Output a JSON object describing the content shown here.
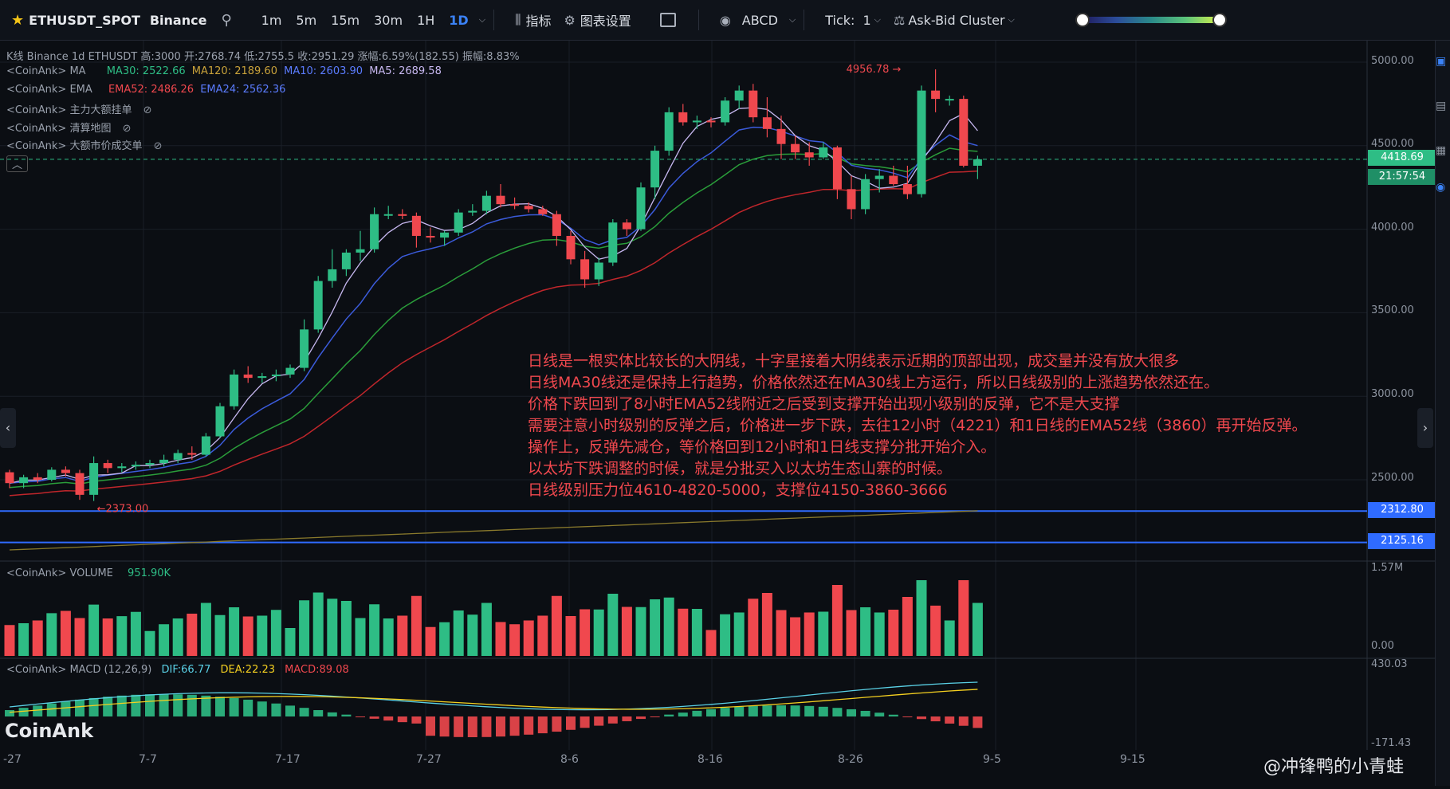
{
  "toolbar": {
    "symbol": "ETHUSDT_SPOT",
    "exchange": "Binance",
    "intervals": [
      "1m",
      "5m",
      "15m",
      "30m",
      "1H",
      "1D"
    ],
    "active_interval": "1D",
    "indicators_label": "指标",
    "chart_settings_label": "图表设置",
    "drawing_label": "ABCD",
    "tick_label": "Tick:",
    "tick_value": "1",
    "cluster_label": "Ask-Bid Cluster"
  },
  "legends": {
    "kline_prefix": "<CoinAnk>",
    "kline_text": "K线  Binance 1d ETHUSDT 高:3000  开:2768.74  低:2755.5  收:2951.29 涨幅:6.59%(182.55) 振幅:8.83%",
    "ma_prefix": "<CoinAnk>  MA",
    "ma30": "MA30: 2522.66",
    "ma120": "MA120: 2189.60",
    "ma10": "MA10: 2603.90",
    "ma5": "MA5: 2689.58",
    "ema_prefix": "<CoinAnk>  EMA",
    "ema52": "EMA52: 2486.26",
    "ema24": "EMA24: 2562.36",
    "bigorder": "<CoinAnk>  主力大额挂单",
    "liqmap": "<CoinAnk>  清算地图",
    "bigtrade": "<CoinAnk>  大额市价成交单",
    "volume_prefix": "<CoinAnk>  VOLUME",
    "volume_value": "951.90K",
    "macd_prefix": "<CoinAnk>  MACD  (12,26,9)",
    "dif": "DIF:66.77",
    "dea": "DEA:22.23",
    "macd": "MACD:89.08"
  },
  "price_axis": {
    "labels": [
      "5000.00",
      "4500.00",
      "4000.00",
      "3500.00",
      "3000.00",
      "2500.00"
    ],
    "volume_labels": [
      "1.57M",
      "0.00"
    ],
    "macd_labels": [
      "430.03",
      "-171.43"
    ]
  },
  "price_boxes": {
    "last_price": "4418.69",
    "countdown": "21:57:54",
    "line1": "2312.80",
    "line2": "2125.16"
  },
  "markers": {
    "high": "4956.78",
    "low": "2373.00"
  },
  "x_axis": [
    "-27",
    "7-7",
    "7-17",
    "7-27",
    "8-6",
    "8-16",
    "8-26",
    "9-5",
    "9-15"
  ],
  "annotation": [
    "日线是一根实体比较长的大阴线，十字星接着大阴线表示近期的顶部出现，成交量并没有放大很多",
    "日线MA30线还是保持上行趋势，价格依然还在MA30线上方运行，所以日线级别的上涨趋势依然还在。",
    "价格下跌回到了8小时EMA52线附近之后受到支撑开始出现小级别的反弹，它不是大支撑",
    "需要注意小时级别的反弹之后，价格进一步下跌，去往12小时（4221）和1日线的EMA52线（3860）再开始反弹。",
    "操作上，反弹先减仓，等价格回到12小时和1日线支撑分批开始介入。",
    "以太坊下跌调整的时候，就是分批买入以太坊生态山寨的时候。",
    "日线级别压力位4610-4820-5000，支撑位4150-3860-3666"
  ],
  "logo": "CoinAnk",
  "watermark": "@冲锋鸭的小青蛙",
  "colors": {
    "up": "#2ebd85",
    "down": "#f0484e",
    "ma5": "#c7b8f0",
    "ma10": "#3b5bdb",
    "ma30": "#2a9d3a",
    "ema52": "#c0262b",
    "ma120": "#8a7a2c",
    "hline": "#2f6bff"
  },
  "chart_data": {
    "type": "candlestick",
    "candles": [
      [
        2545,
        2560,
        2450,
        2480
      ],
      [
        2480,
        2530,
        2450,
        2515
      ],
      [
        2515,
        2540,
        2480,
        2500
      ],
      [
        2500,
        2575,
        2490,
        2560
      ],
      [
        2560,
        2580,
        2520,
        2540
      ],
      [
        2540,
        2560,
        2380,
        2410
      ],
      [
        2410,
        2640,
        2373,
        2600
      ],
      [
        2600,
        2620,
        2540,
        2570
      ],
      [
        2570,
        2600,
        2545,
        2580
      ],
      [
        2580,
        2610,
        2560,
        2590
      ],
      [
        2590,
        2620,
        2570,
        2600
      ],
      [
        2600,
        2650,
        2580,
        2620
      ],
      [
        2620,
        2680,
        2600,
        2660
      ],
      [
        2660,
        2700,
        2620,
        2650
      ],
      [
        2650,
        2780,
        2640,
        2760
      ],
      [
        2760,
        2960,
        2750,
        2940
      ],
      [
        2940,
        3160,
        2920,
        3130
      ],
      [
        3130,
        3180,
        3080,
        3110
      ],
      [
        3110,
        3140,
        3080,
        3120
      ],
      [
        3120,
        3160,
        3090,
        3130
      ],
      [
        3130,
        3190,
        3110,
        3170
      ],
      [
        3170,
        3460,
        3150,
        3400
      ],
      [
        3400,
        3720,
        3380,
        3690
      ],
      [
        3690,
        3880,
        3650,
        3760
      ],
      [
        3760,
        3880,
        3720,
        3860
      ],
      [
        3860,
        3990,
        3810,
        3880
      ],
      [
        3880,
        4130,
        3860,
        4090
      ],
      [
        4090,
        4140,
        4060,
        4090
      ],
      [
        4090,
        4120,
        4060,
        4080
      ],
      [
        4080,
        4100,
        3890,
        3960
      ],
      [
        3960,
        4010,
        3920,
        3950
      ],
      [
        3950,
        3990,
        3900,
        3980
      ],
      [
        3980,
        4120,
        3960,
        4100
      ],
      [
        4100,
        4150,
        4080,
        4110
      ],
      [
        4110,
        4230,
        4090,
        4200
      ],
      [
        4200,
        4270,
        4130,
        4150
      ],
      [
        4150,
        4190,
        4120,
        4140
      ],
      [
        4140,
        4160,
        4100,
        4120
      ],
      [
        4120,
        4140,
        4080,
        4090
      ],
      [
        4090,
        4110,
        3900,
        3960
      ],
      [
        3960,
        3990,
        3790,
        3820
      ],
      [
        3820,
        3870,
        3650,
        3700
      ],
      [
        3700,
        3830,
        3660,
        3800
      ],
      [
        3800,
        4060,
        3780,
        4040
      ],
      [
        4040,
        4060,
        3960,
        4000
      ],
      [
        4000,
        4280,
        3990,
        4250
      ],
      [
        4250,
        4500,
        4180,
        4470
      ],
      [
        4470,
        4730,
        4440,
        4700
      ],
      [
        4700,
        4750,
        4620,
        4640
      ],
      [
        4640,
        4680,
        4600,
        4650
      ],
      [
        4650,
        4670,
        4610,
        4640
      ],
      [
        4640,
        4790,
        4620,
        4770
      ],
      [
        4770,
        4860,
        4720,
        4830
      ],
      [
        4830,
        4870,
        4640,
        4670
      ],
      [
        4670,
        4790,
        4550,
        4600
      ],
      [
        4600,
        4680,
        4420,
        4510
      ],
      [
        4510,
        4560,
        4420,
        4460
      ],
      [
        4460,
        4520,
        4380,
        4430
      ],
      [
        4430,
        4520,
        4420,
        4490
      ],
      [
        4490,
        4500,
        4180,
        4240
      ],
      [
        4240,
        4320,
        4060,
        4120
      ],
      [
        4120,
        4330,
        4090,
        4300
      ],
      [
        4300,
        4360,
        4220,
        4320
      ],
      [
        4320,
        4380,
        4260,
        4270
      ],
      [
        4270,
        4380,
        4180,
        4210
      ],
      [
        4210,
        4860,
        4190,
        4830
      ],
      [
        4830,
        4956.78,
        4700,
        4780
      ],
      [
        4780,
        4800,
        4740,
        4780
      ],
      [
        4780,
        4800,
        4370,
        4380
      ],
      [
        4380,
        4440,
        4300,
        4418.69
      ]
    ],
    "hlines": [
      2312.8,
      2125.16
    ],
    "last": 4418.69
  }
}
